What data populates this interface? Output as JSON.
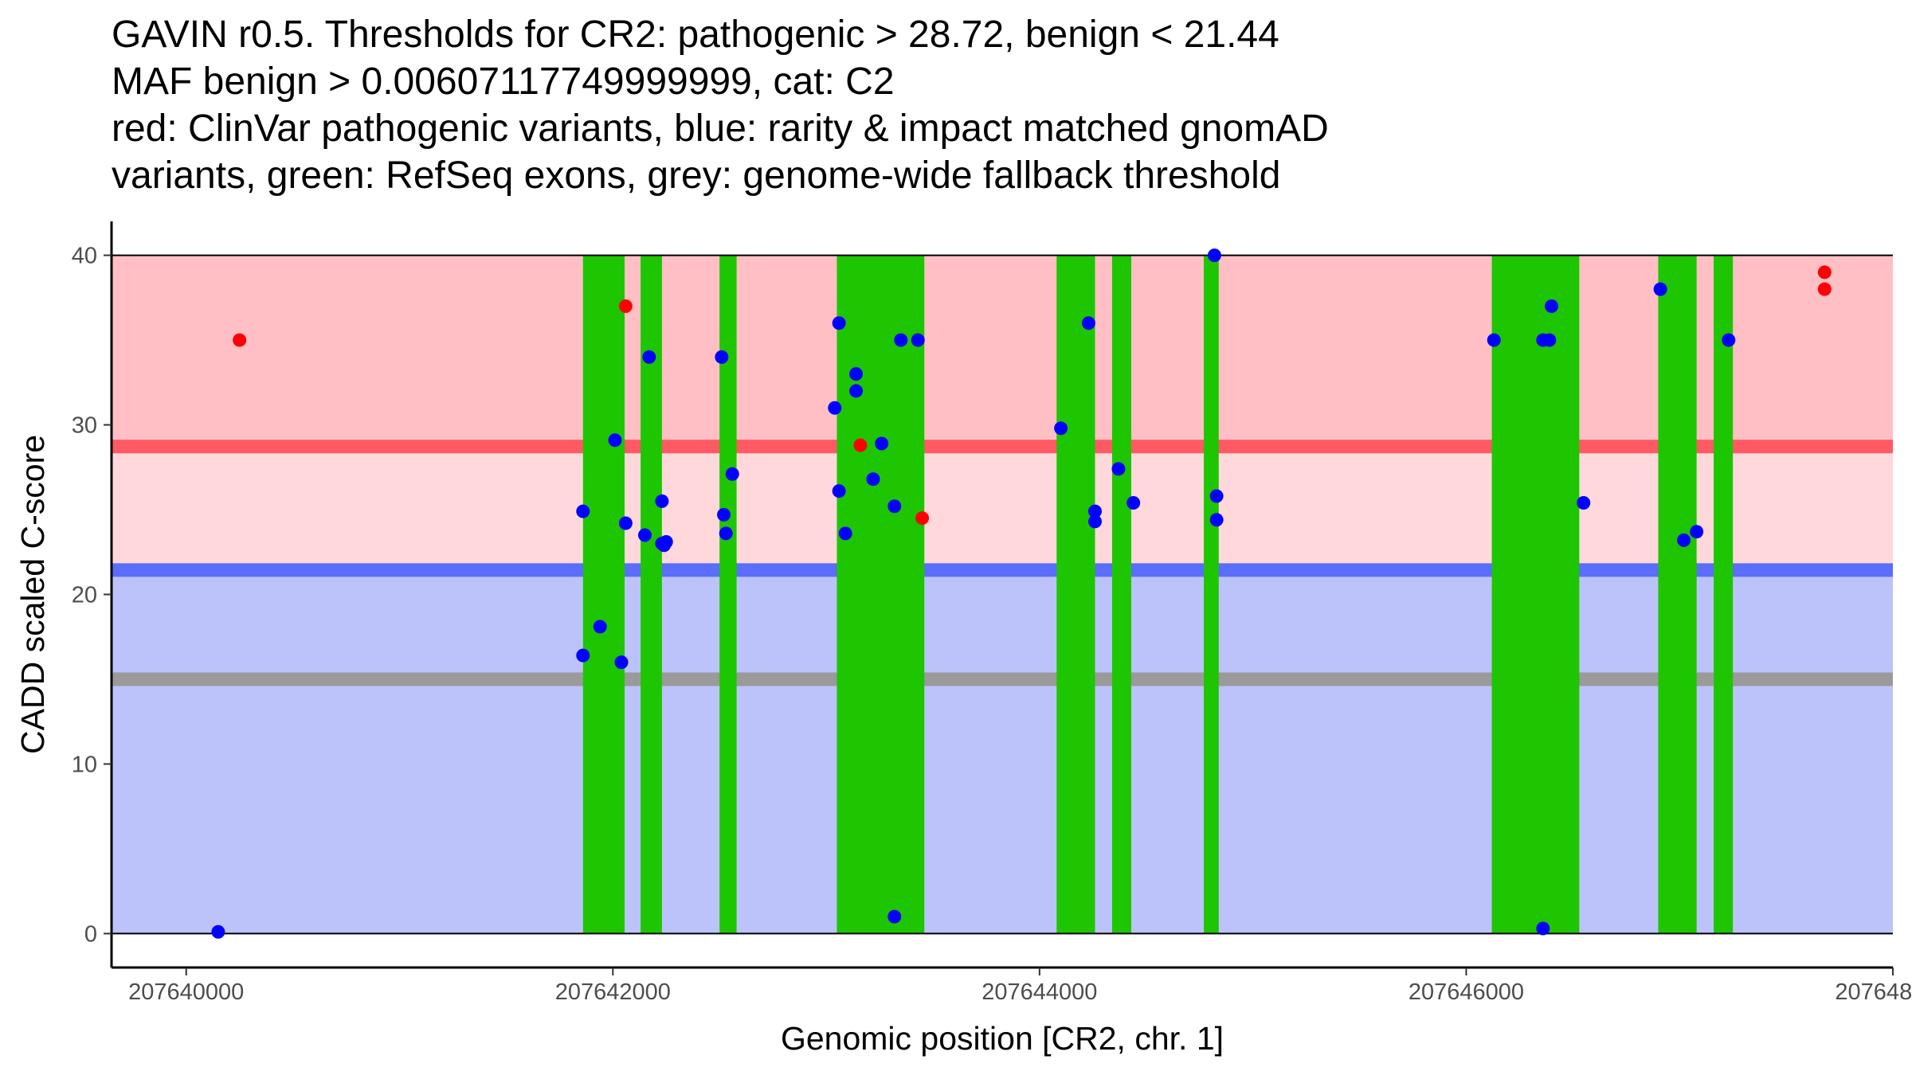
{
  "chart_data": {
    "type": "scatter",
    "title_lines": [
      "GAVIN r0.5. Thresholds for CR2: pathogenic > 28.72, benign < 21.44",
      "MAF benign > 0.00607117749999999, cat: C2",
      "red: ClinVar pathogenic variants, blue: rarity & impact matched gnomAD",
      "variants, green: RefSeq exons, grey: genome-wide fallback threshold"
    ],
    "xlabel": "Genomic position [CR2, chr. 1]",
    "ylabel": "CADD scaled C-score",
    "xlim": [
      207639650,
      207648000
    ],
    "ylim": [
      -2,
      42
    ],
    "x_ticks": [
      207640000,
      207642000,
      207644000,
      207646000,
      207648000
    ],
    "x_tick_labels": [
      "207640000",
      "207642000",
      "207644000",
      "207646000",
      "207648000"
    ],
    "y_ticks": [
      0,
      10,
      20,
      30,
      40
    ],
    "y_tick_labels": [
      "0",
      "10",
      "20",
      "30",
      "40"
    ],
    "regions": {
      "pathogenic_band": {
        "from": 28.72,
        "to": 40,
        "color": "#ffbfc4"
      },
      "intermediate_band": {
        "from": 21.44,
        "to": 28.72,
        "color": "#ffd8dc"
      },
      "benign_band": {
        "from": 0,
        "to": 21.44,
        "color": "#bcc3fa"
      }
    },
    "threshold_lines": [
      {
        "name": "pathogenic-threshold",
        "y": 28.72,
        "color": "#fe5a64"
      },
      {
        "name": "benign-threshold",
        "y": 21.44,
        "color": "#5a6dfb"
      },
      {
        "name": "genome-wide-fallback-threshold",
        "y": 15.0,
        "color": "#9a9a9a"
      }
    ],
    "exons": [
      [
        207641860,
        207642055
      ],
      [
        207642130,
        207642230
      ],
      [
        207642500,
        207642580
      ],
      [
        207643050,
        207643460
      ],
      [
        207644080,
        207644260
      ],
      [
        207644340,
        207644430
      ],
      [
        207644770,
        207644840
      ],
      [
        207646120,
        207646530
      ],
      [
        207646900,
        207647080
      ],
      [
        207647160,
        207647250
      ]
    ],
    "series": [
      {
        "name": "ClinVar pathogenic variants",
        "color": "#ff0000",
        "points": [
          [
            207640250,
            35
          ],
          [
            207642060,
            37
          ],
          [
            207643160,
            28.8
          ],
          [
            207643450,
            24.5
          ],
          [
            207647680,
            39
          ],
          [
            207647680,
            38
          ]
        ]
      },
      {
        "name": "rarity & impact matched gnomAD variants",
        "color": "#0000ff",
        "points": [
          [
            207640150,
            0.1
          ],
          [
            207641860,
            16.4
          ],
          [
            207641860,
            24.9
          ],
          [
            207641940,
            18.1
          ],
          [
            207642010,
            29.1
          ],
          [
            207642040,
            16.0
          ],
          [
            207642060,
            24.2
          ],
          [
            207642150,
            23.5
          ],
          [
            207642170,
            34.0
          ],
          [
            207642230,
            25.5
          ],
          [
            207642230,
            23.0
          ],
          [
            207642250,
            23.1
          ],
          [
            207642240,
            22.9
          ],
          [
            207642510,
            34.0
          ],
          [
            207642520,
            24.7
          ],
          [
            207642530,
            23.6
          ],
          [
            207642560,
            27.1
          ],
          [
            207643040,
            31.0
          ],
          [
            207643060,
            36.0
          ],
          [
            207643060,
            26.1
          ],
          [
            207643090,
            23.6
          ],
          [
            207643140,
            33.0
          ],
          [
            207643140,
            32.0
          ],
          [
            207643220,
            26.8
          ],
          [
            207643260,
            28.9
          ],
          [
            207643320,
            25.2
          ],
          [
            207643320,
            1.0
          ],
          [
            207643350,
            35.0
          ],
          [
            207643430,
            35.0
          ],
          [
            207644100,
            29.8
          ],
          [
            207644230,
            36.0
          ],
          [
            207644260,
            24.9
          ],
          [
            207644260,
            24.3
          ],
          [
            207644370,
            27.4
          ],
          [
            207644440,
            25.4
          ],
          [
            207644820,
            40.0
          ],
          [
            207644830,
            25.8
          ],
          [
            207644830,
            24.4
          ],
          [
            207646130,
            35.0
          ],
          [
            207646360,
            0.3
          ],
          [
            207646360,
            35.0
          ],
          [
            207646390,
            35.0
          ],
          [
            207646400,
            37.0
          ],
          [
            207646550,
            25.4
          ],
          [
            207646910,
            38.0
          ],
          [
            207647020,
            23.2
          ],
          [
            207647080,
            23.7
          ],
          [
            207647230,
            35.0
          ]
        ]
      }
    ]
  }
}
